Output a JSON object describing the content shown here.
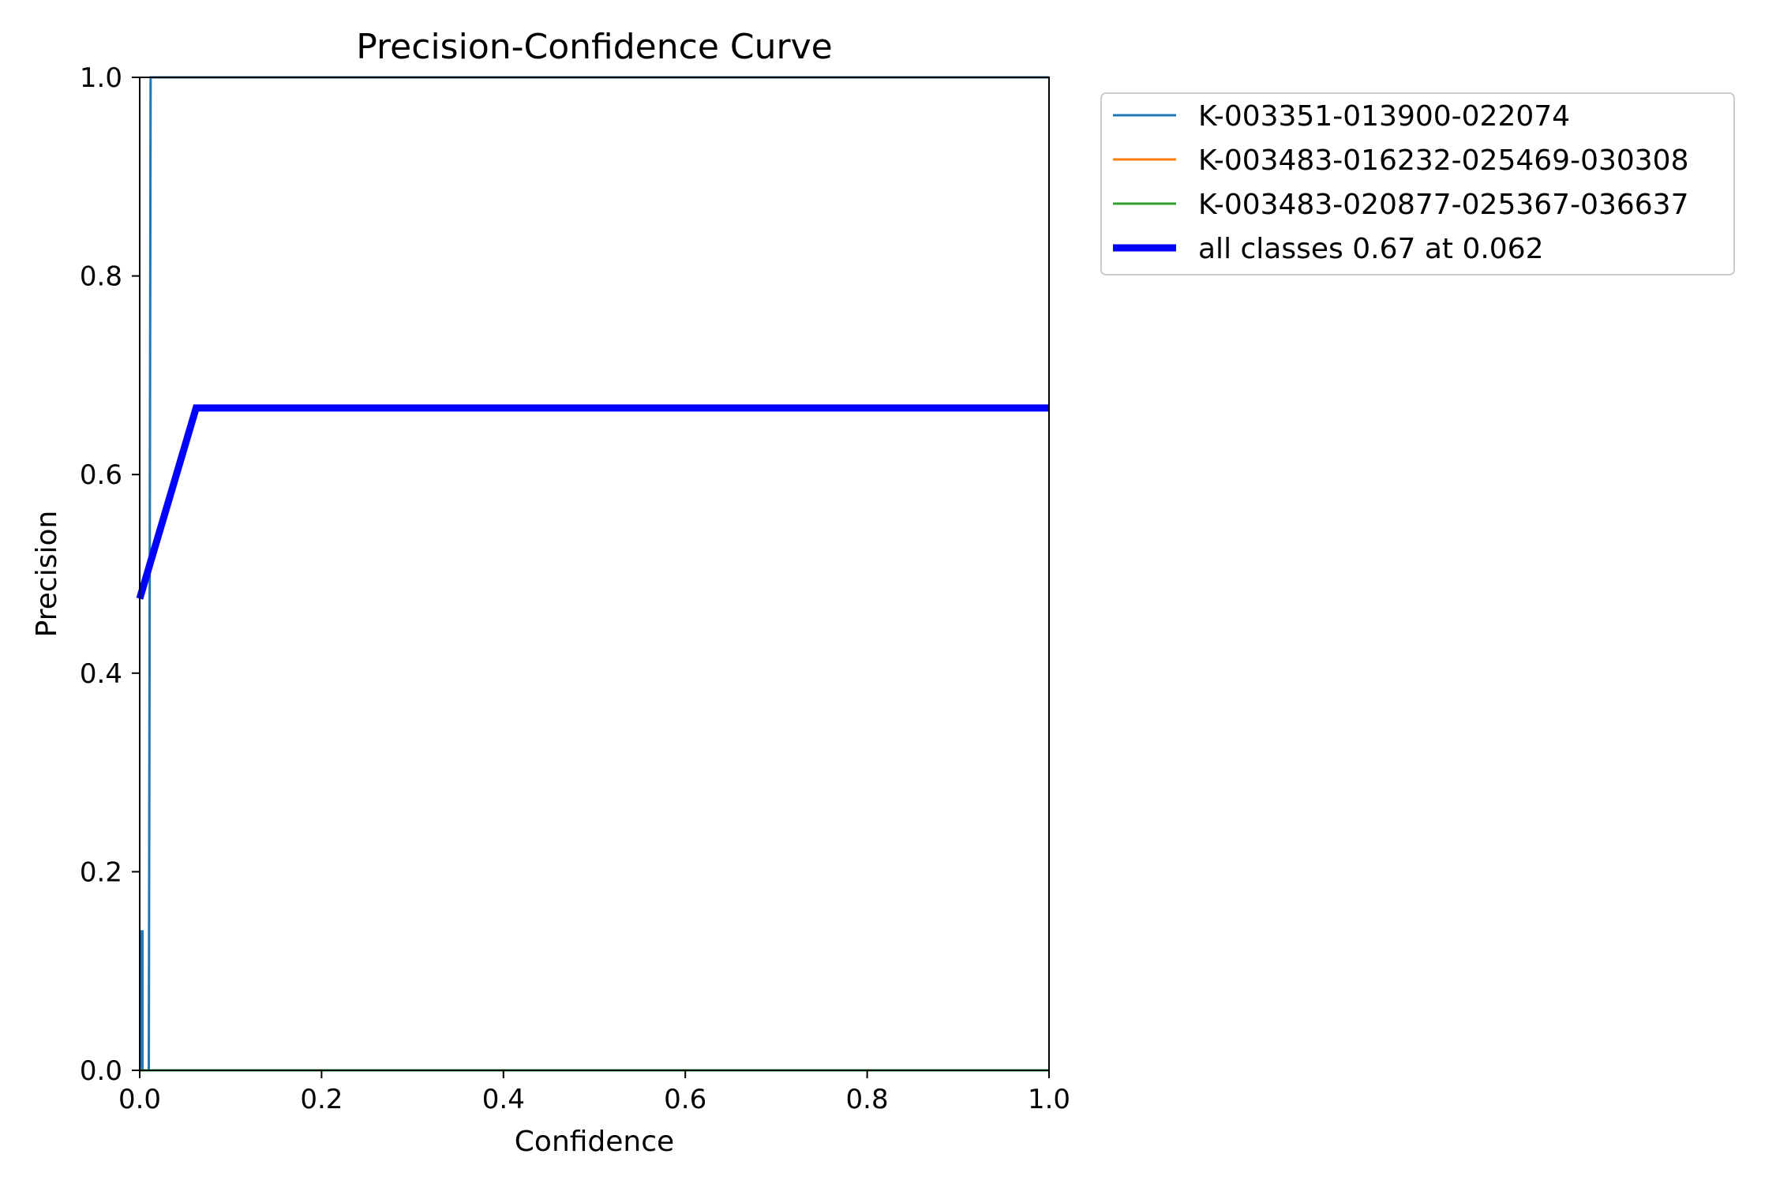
{
  "chart_data": {
    "type": "line",
    "title": "Precision-Confidence Curve",
    "xlabel": "Confidence",
    "ylabel": "Precision",
    "xlim": [
      0,
      1
    ],
    "ylim": [
      0,
      1
    ],
    "xticks": [
      0.0,
      0.2,
      0.4,
      0.6,
      0.8,
      1.0
    ],
    "yticks": [
      0.0,
      0.2,
      0.4,
      0.6,
      0.8,
      1.0
    ],
    "xtick_labels": [
      "0.0",
      "0.2",
      "0.4",
      "0.6",
      "0.8",
      "1.0"
    ],
    "ytick_labels": [
      "0.0",
      "0.2",
      "0.4",
      "0.6",
      "0.8",
      "1.0"
    ],
    "grid": false,
    "legend_placement": "outside upper right",
    "series": [
      {
        "name": "K-003351-013900-022074",
        "color": "#1f77b4",
        "x": [
          0.0,
          0.002,
          0.002,
          0.003,
          0.003,
          0.01,
          0.012,
          0.012,
          1.0
        ],
        "y": [
          0.0,
          0.0,
          0.14,
          0.14,
          0.0,
          0.0,
          1.0,
          1.0,
          1.0
        ]
      },
      {
        "name": "K-003483-016232-025469-030308",
        "color": "#ff7f0e",
        "x": [
          0.0,
          1.0
        ],
        "y": [
          0.0,
          0.0
        ]
      },
      {
        "name": "K-003483-020877-025367-036637",
        "color": "#2ca02c",
        "x": [
          0.0,
          1.0
        ],
        "y": [
          0.0,
          0.0
        ]
      },
      {
        "name": "all classes 0.67 at 0.062",
        "color": "#0000ff",
        "bold": true,
        "x": [
          0.0,
          0.062,
          1.0
        ],
        "y": [
          0.475,
          0.667,
          0.667
        ]
      }
    ]
  }
}
